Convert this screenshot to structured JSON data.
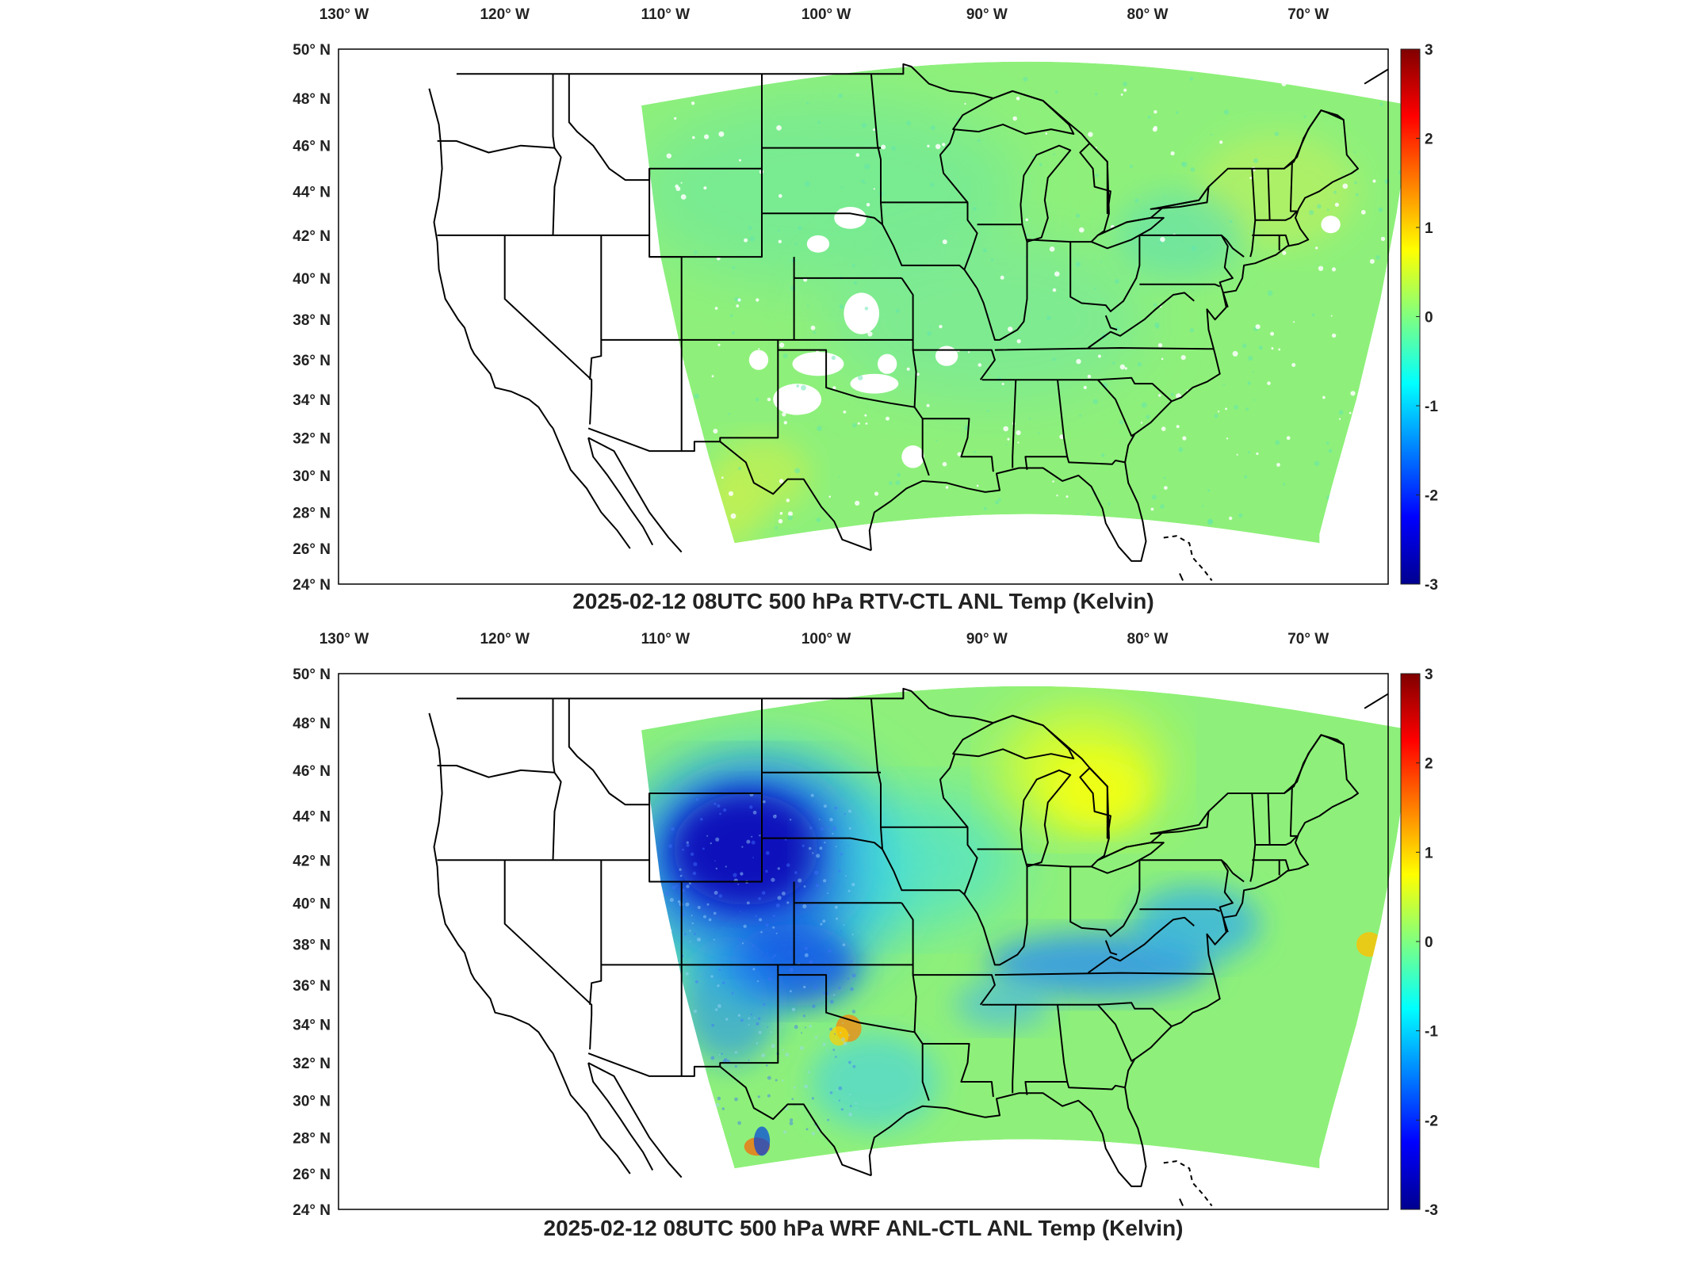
{
  "panels": [
    {
      "id": "rtv",
      "title": "2025-02-12 08UTC 500 hPa RTV-CTL ANL Temp (Kelvin)"
    },
    {
      "id": "wrf",
      "title": "2025-02-12 08UTC 500 hPa WRF ANL-CTL ANL Temp (Kelvin)"
    }
  ],
  "axes": {
    "lon_labels": [
      "130° W",
      "120° W",
      "110° W",
      "100° W",
      "90° W",
      "80° W",
      "70° W"
    ],
    "lon_values": [
      -130,
      -120,
      -110,
      -100,
      -90,
      -80,
      -70
    ],
    "lat_labels": [
      "50° N",
      "48° N",
      "46° N",
      "44° N",
      "42° N",
      "40° N",
      "38° N",
      "36° N",
      "34° N",
      "32° N",
      "30° N",
      "28° N",
      "26° N",
      "24° N"
    ],
    "lat_values": [
      50,
      48,
      46,
      44,
      42,
      40,
      38,
      36,
      34,
      32,
      30,
      28,
      26,
      24
    ]
  },
  "colorbar": {
    "colormap": "jet",
    "range": [
      -3,
      3
    ],
    "tick_labels": [
      "3",
      "2",
      "1",
      "0",
      "-1",
      "-2",
      "-3"
    ],
    "tick_values": [
      3,
      2,
      1,
      0,
      -1,
      -2,
      -3
    ]
  },
  "colors": {
    "neutral_field": "#8ef07a",
    "jet_dark_blue": "#00008f",
    "jet_blue": "#0050ff",
    "jet_cyan": "#00e5ff",
    "jet_yellow": "#ffff00",
    "jet_red": "#ff1a00",
    "jet_dark_red": "#800000"
  }
}
